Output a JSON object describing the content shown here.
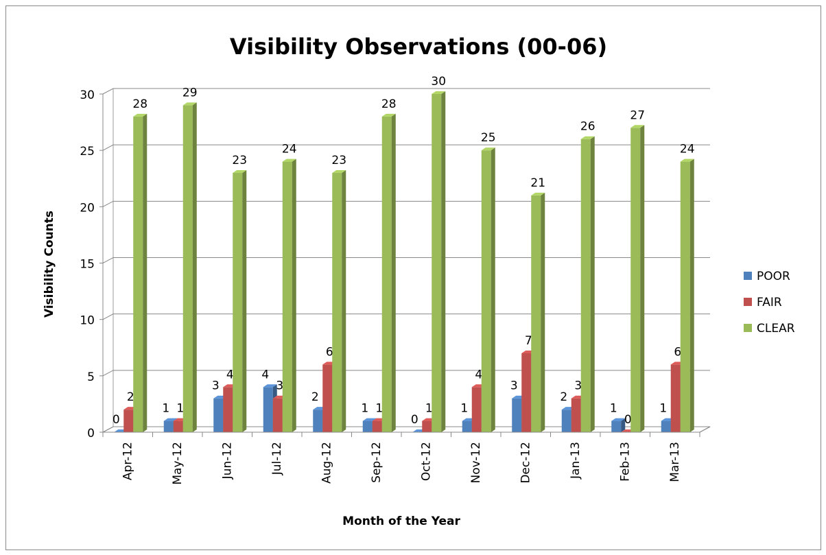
{
  "chart_data": {
    "type": "bar",
    "title": "Visibility Observations (00-06)",
    "x_label": "Month of the Year",
    "y_label": "Visibility Counts",
    "categories": [
      "Apr-12",
      "May-12",
      "Jun-12",
      "Jul-12",
      "Aug-12",
      "Sep-12",
      "Oct-12",
      "Nov-12",
      "Dec-12",
      "Jan-13",
      "Feb-13",
      "Mar-13"
    ],
    "series": [
      {
        "name": "POOR",
        "color": "#4f81bd",
        "values": [
          0,
          1,
          3,
          4,
          2,
          1,
          0,
          1,
          3,
          2,
          1,
          1
        ]
      },
      {
        "name": "FAIR",
        "color": "#c0504d",
        "values": [
          2,
          1,
          4,
          3,
          6,
          1,
          1,
          4,
          7,
          3,
          0,
          6
        ]
      },
      {
        "name": "CLEAR",
        "color": "#9bbb59",
        "values": [
          28,
          29,
          23,
          24,
          23,
          28,
          30,
          25,
          21,
          26,
          27,
          24
        ]
      }
    ],
    "ylim": [
      0,
      30
    ],
    "yticks": [
      0,
      5,
      10,
      15,
      20,
      25,
      30
    ],
    "grid": true,
    "legend": "right"
  }
}
